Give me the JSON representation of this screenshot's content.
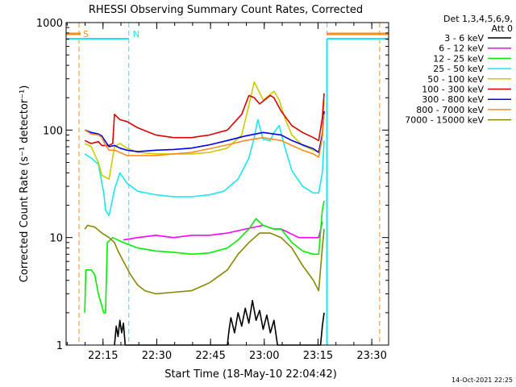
{
  "chart_data": {
    "type": "line",
    "title": "RHESSI Observing Summary Count Rates, Corrected",
    "xlabel": "Start Time (18-May-10 22:04:42)",
    "ylabel": "Corrected Count Rate (s⁻¹ detector⁻¹)",
    "yscale": "log",
    "ylim": [
      1,
      1000
    ],
    "xlim_minutes": [
      0,
      90
    ],
    "x_ticks": [
      {
        "label": "22:15",
        "minute": 10.3
      },
      {
        "label": "22:30",
        "minute": 25.3
      },
      {
        "label": "22:45",
        "minute": 40.3
      },
      {
        "label": "23:00",
        "minute": 55.3
      },
      {
        "label": "23:15",
        "minute": 70.3
      },
      {
        "label": "23:30",
        "minute": 85.3
      }
    ],
    "y_ticks": [
      {
        "label": "1",
        "value": 1
      },
      {
        "label": "10",
        "value": 10
      },
      {
        "label": "100",
        "value": 100
      },
      {
        "label": "1000",
        "value": 1000
      }
    ],
    "detector_info": [
      "Det 1,3,4,5,6,9,",
      "Att 0"
    ],
    "footer_date": "14-Oct-2021 22:25",
    "markers": [
      {
        "label": "S",
        "minute": 3.6,
        "color": "#ff8c1a"
      },
      {
        "label": "N",
        "minute": 17.5,
        "color": "#19e6f0"
      },
      {
        "label": "",
        "minute": 72.8,
        "color": "#19e6f0"
      },
      {
        "label": "",
        "minute": 87.5,
        "color": "#ff8c1a"
      }
    ],
    "series": [
      {
        "name": "3 - 6 keV",
        "color": "#000000",
        "points": [
          [
            13.5,
            1
          ],
          [
            14,
            1.5
          ],
          [
            14.5,
            1.2
          ],
          [
            15,
            1.7
          ],
          [
            15.5,
            1.3
          ],
          [
            16,
            1.6
          ],
          [
            16.5,
            1
          ],
          [
            45,
            1
          ],
          [
            45.5,
            1.4
          ],
          [
            46,
            1.8
          ],
          [
            47,
            1.3
          ],
          [
            48,
            2.0
          ],
          [
            49,
            1.5
          ],
          [
            50,
            2.2
          ],
          [
            51,
            1.6
          ],
          [
            52,
            2.6
          ],
          [
            53,
            1.7
          ],
          [
            54,
            2.1
          ],
          [
            55,
            1.4
          ],
          [
            56,
            1.9
          ],
          [
            57,
            1.3
          ],
          [
            58,
            1.7
          ],
          [
            59,
            1
          ],
          [
            71,
            1
          ],
          [
            71.5,
            1.5
          ],
          [
            72,
            2
          ]
        ]
      },
      {
        "name": "6 - 12 keV",
        "color": "#ff00ff",
        "points": [
          [
            16,
            9.5
          ],
          [
            20,
            10
          ],
          [
            25,
            10.5
          ],
          [
            30,
            10
          ],
          [
            35,
            10.5
          ],
          [
            40,
            10.5
          ],
          [
            45,
            11
          ],
          [
            50,
            12
          ],
          [
            55,
            13
          ],
          [
            58,
            12
          ],
          [
            60,
            12
          ],
          [
            65,
            10
          ],
          [
            69,
            10
          ],
          [
            70.5,
            10
          ],
          [
            71.5,
            14
          ]
        ]
      },
      {
        "name": "12 - 25 keV",
        "color": "#00ee00",
        "points": [
          [
            5.2,
            2
          ],
          [
            5.5,
            5
          ],
          [
            7,
            5
          ],
          [
            8,
            4.5
          ],
          [
            9,
            3
          ],
          [
            10.5,
            2
          ],
          [
            11,
            2
          ],
          [
            11.5,
            9
          ],
          [
            13,
            10
          ],
          [
            16,
            9
          ],
          [
            20,
            8
          ],
          [
            25,
            7.5
          ],
          [
            30,
            7.3
          ],
          [
            35,
            7
          ],
          [
            40,
            7.2
          ],
          [
            45,
            8
          ],
          [
            48,
            9.5
          ],
          [
            51,
            12
          ],
          [
            53,
            15
          ],
          [
            55,
            13
          ],
          [
            58,
            12
          ],
          [
            60,
            12
          ],
          [
            63,
            9
          ],
          [
            66,
            7.5
          ],
          [
            69,
            7
          ],
          [
            70.5,
            7
          ],
          [
            71.5,
            18
          ],
          [
            72,
            22
          ]
        ]
      },
      {
        "name": "25 - 50 keV",
        "color": "#19e6f0",
        "points": [
          [
            5.2,
            60
          ],
          [
            7,
            55
          ],
          [
            9,
            48
          ],
          [
            10.5,
            26
          ],
          [
            11,
            18
          ],
          [
            12,
            16
          ],
          [
            13.5,
            28
          ],
          [
            15,
            40
          ],
          [
            17,
            32
          ],
          [
            20,
            27
          ],
          [
            25,
            25
          ],
          [
            30,
            24
          ],
          [
            35,
            24
          ],
          [
            40,
            25
          ],
          [
            44,
            27
          ],
          [
            48,
            35
          ],
          [
            51,
            55
          ],
          [
            52.5,
            85
          ],
          [
            53.5,
            125
          ],
          [
            55,
            82
          ],
          [
            57,
            80
          ],
          [
            58,
            95
          ],
          [
            59.5,
            110
          ],
          [
            61,
            70
          ],
          [
            63,
            42
          ],
          [
            66,
            30
          ],
          [
            69,
            26
          ],
          [
            70.5,
            26
          ],
          [
            71.5,
            40
          ],
          [
            72,
            80
          ]
        ]
      },
      {
        "name": "50 - 100 keV",
        "color": "#cccc00",
        "points": [
          [
            5.2,
            75
          ],
          [
            7,
            70
          ],
          [
            9,
            50
          ],
          [
            10,
            38
          ],
          [
            12,
            35
          ],
          [
            13.5,
            70
          ],
          [
            15,
            75
          ],
          [
            17,
            68
          ],
          [
            20,
            62
          ],
          [
            25,
            60
          ],
          [
            30,
            60
          ],
          [
            35,
            60
          ],
          [
            40,
            62
          ],
          [
            45,
            68
          ],
          [
            49,
            90
          ],
          [
            51,
            170
          ],
          [
            52.5,
            280
          ],
          [
            53.5,
            240
          ],
          [
            55,
            190
          ],
          [
            58,
            230
          ],
          [
            59.5,
            190
          ],
          [
            61,
            130
          ],
          [
            63,
            90
          ],
          [
            66,
            72
          ],
          [
            69,
            65
          ],
          [
            70.5,
            62
          ],
          [
            71.5,
            95
          ],
          [
            72,
            190
          ]
        ]
      },
      {
        "name": "100 - 300 keV",
        "color": "#dd0000",
        "points": [
          [
            5.2,
            80
          ],
          [
            7,
            75
          ],
          [
            9,
            78
          ],
          [
            10,
            72
          ],
          [
            12,
            72
          ],
          [
            13,
            75
          ],
          [
            13.5,
            140
          ],
          [
            15,
            125
          ],
          [
            17,
            120
          ],
          [
            20,
            105
          ],
          [
            25,
            90
          ],
          [
            30,
            85
          ],
          [
            35,
            85
          ],
          [
            40,
            90
          ],
          [
            45,
            100
          ],
          [
            49,
            140
          ],
          [
            51,
            210
          ],
          [
            52.5,
            200
          ],
          [
            54,
            175
          ],
          [
            57,
            210
          ],
          [
            58,
            200
          ],
          [
            60,
            150
          ],
          [
            63,
            110
          ],
          [
            66,
            95
          ],
          [
            69,
            85
          ],
          [
            70.5,
            80
          ],
          [
            71.5,
            130
          ],
          [
            72,
            220
          ]
        ]
      },
      {
        "name": "300 - 800 keV",
        "color": "#0000ee",
        "points": [
          [
            5.2,
            100
          ],
          [
            7,
            95
          ],
          [
            9,
            92
          ],
          [
            10,
            88
          ],
          [
            11,
            78
          ],
          [
            12,
            70
          ],
          [
            13.5,
            72
          ],
          [
            15,
            68
          ],
          [
            17,
            65
          ],
          [
            20,
            63
          ],
          [
            25,
            65
          ],
          [
            30,
            66
          ],
          [
            35,
            68
          ],
          [
            40,
            73
          ],
          [
            45,
            80
          ],
          [
            50,
            88
          ],
          [
            55,
            95
          ],
          [
            60,
            90
          ],
          [
            63,
            80
          ],
          [
            66,
            73
          ],
          [
            69,
            67
          ],
          [
            70.5,
            62
          ],
          [
            71.5,
            90
          ],
          [
            72,
            150
          ]
        ]
      },
      {
        "name": "800 - 7000 keV",
        "color": "#ff8c1a",
        "points": [
          [
            5.2,
            100
          ],
          [
            7,
            92
          ],
          [
            9,
            90
          ],
          [
            10,
            85
          ],
          [
            11,
            72
          ],
          [
            12,
            65
          ],
          [
            13.5,
            65
          ],
          [
            15,
            62
          ],
          [
            17,
            58
          ],
          [
            20,
            58
          ],
          [
            25,
            58
          ],
          [
            30,
            60
          ],
          [
            35,
            62
          ],
          [
            40,
            67
          ],
          [
            45,
            73
          ],
          [
            50,
            80
          ],
          [
            55,
            85
          ],
          [
            60,
            80
          ],
          [
            63,
            72
          ],
          [
            66,
            65
          ],
          [
            69,
            60
          ],
          [
            70.5,
            56
          ],
          [
            71.5,
            85
          ],
          [
            72,
            140
          ]
        ]
      },
      {
        "name": "7000 - 15000 keV",
        "color": "#888800",
        "points": [
          [
            5.2,
            12
          ],
          [
            6,
            13
          ],
          [
            8,
            12.5
          ],
          [
            10,
            11
          ],
          [
            12,
            10
          ],
          [
            13.5,
            9
          ],
          [
            14.5,
            7.5
          ],
          [
            16,
            6
          ],
          [
            18,
            4.5
          ],
          [
            20,
            3.6
          ],
          [
            22,
            3.2
          ],
          [
            25,
            3
          ],
          [
            30,
            3.1
          ],
          [
            35,
            3.2
          ],
          [
            40,
            3.8
          ],
          [
            45,
            5
          ],
          [
            48,
            7
          ],
          [
            51,
            9
          ],
          [
            54,
            11
          ],
          [
            57,
            11
          ],
          [
            60,
            10
          ],
          [
            63,
            8
          ],
          [
            66,
            5.5
          ],
          [
            69,
            4
          ],
          [
            70.5,
            3.2
          ],
          [
            71.5,
            8
          ],
          [
            72,
            12
          ]
        ]
      }
    ]
  }
}
